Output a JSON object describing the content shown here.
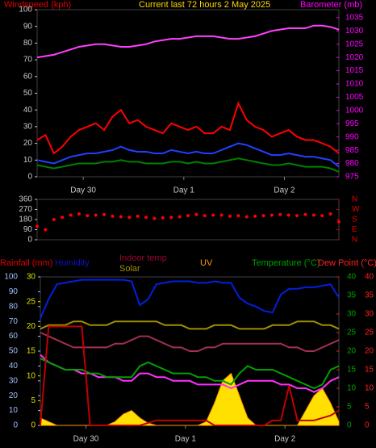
{
  "chart_data": [
    {
      "type": "line",
      "title": "Current last 72 hours 2 May 2025",
      "title_color": "#ffd800",
      "x": [
        0,
        2,
        4,
        6,
        8,
        10,
        12,
        14,
        16,
        18,
        20,
        22,
        24,
        26,
        28,
        30,
        32,
        34,
        36,
        38,
        40,
        42,
        44,
        46,
        48,
        50,
        52,
        54,
        56,
        58,
        60,
        62,
        64,
        66,
        68,
        70,
        72
      ],
      "xlim": [
        0,
        72
      ],
      "xticks": [
        {
          "value": 11,
          "label": "Day 30"
        },
        {
          "value": 35,
          "label": "Day 1"
        },
        {
          "value": 59,
          "label": "Day 2"
        }
      ],
      "axes": [
        {
          "label": "Windspeed (kph)",
          "color": "#e00000",
          "tick_color": "#c8c8c8",
          "lim": [
            0,
            100
          ],
          "ticks": [
            0,
            10,
            20,
            30,
            40,
            50,
            60,
            70,
            80,
            90,
            100
          ]
        },
        {
          "label": "Barometer (mb)",
          "color": "#ff00ff",
          "tick_color": "#ff00ff",
          "lim": [
            975,
            1038
          ],
          "ticks": [
            975,
            980,
            985,
            990,
            995,
            1000,
            1005,
            1010,
            1015,
            1020,
            1025,
            1030,
            1035
          ]
        }
      ],
      "series": [
        {
          "color": "#ff0000",
          "axis": 0,
          "values": [
            22,
            25,
            14,
            18,
            24,
            28,
            30,
            32,
            28,
            36,
            40,
            32,
            34,
            30,
            28,
            26,
            32,
            30,
            28,
            30,
            26,
            26,
            30,
            28,
            44,
            34,
            30,
            28,
            24,
            26,
            28,
            24,
            22,
            22,
            20,
            18,
            14
          ]
        },
        {
          "color": "#2040ff",
          "axis": 0,
          "values": [
            10,
            9,
            8,
            10,
            12,
            13,
            14,
            14,
            15,
            16,
            18,
            16,
            15,
            15,
            14,
            14,
            16,
            15,
            14,
            15,
            14,
            14,
            16,
            18,
            20,
            19,
            17,
            15,
            13,
            13,
            14,
            13,
            12,
            12,
            11,
            10,
            6
          ]
        },
        {
          "color": "#008000",
          "axis": 0,
          "values": [
            7,
            6,
            5,
            6,
            7,
            8,
            8,
            8,
            9,
            9,
            10,
            9,
            9,
            8,
            8,
            8,
            9,
            9,
            8,
            9,
            8,
            8,
            9,
            10,
            11,
            10,
            9,
            8,
            7,
            7,
            8,
            7,
            6,
            6,
            6,
            5,
            3
          ]
        },
        {
          "color": "#ff40ff",
          "axis": 1,
          "values": [
            1020,
            1020.5,
            1021,
            1022,
            1023,
            1024,
            1024.5,
            1025,
            1025,
            1024.5,
            1024,
            1024,
            1024.5,
            1025,
            1026,
            1026.5,
            1027,
            1027,
            1027.5,
            1028,
            1028,
            1028,
            1027.5,
            1027,
            1027,
            1027.5,
            1028,
            1029,
            1030,
            1030.5,
            1031,
            1031,
            1031,
            1032,
            1032,
            1031.5,
            1030.5
          ]
        }
      ]
    },
    {
      "type": "scatter",
      "x": [
        0,
        2,
        4,
        6,
        8,
        10,
        12,
        14,
        16,
        18,
        20,
        22,
        24,
        26,
        28,
        30,
        32,
        34,
        36,
        38,
        40,
        42,
        44,
        46,
        48,
        50,
        52,
        54,
        56,
        58,
        60,
        62,
        64,
        66,
        68,
        70,
        72
      ],
      "xlim": [
        0,
        72
      ],
      "axes": [
        {
          "color": "#c8c8c8",
          "tick_color": "#c8c8c8",
          "lim": [
            0,
            360
          ],
          "ticks": [
            0,
            90,
            180,
            270,
            360
          ]
        },
        {
          "color": "#e00000",
          "tick_color": "#e00000",
          "lim": [
            0,
            360
          ],
          "ticks": [
            {
              "value": 0,
              "label": "N"
            },
            {
              "value": 90,
              "label": "E"
            },
            {
              "value": 180,
              "label": "S"
            },
            {
              "value": 270,
              "label": "W"
            },
            {
              "value": 360,
              "label": "N"
            }
          ]
        }
      ],
      "series": [
        {
          "color": "#ff0000",
          "axis": 0,
          "values": [
            120,
            90,
            180,
            200,
            220,
            230,
            215,
            220,
            225,
            210,
            205,
            200,
            210,
            200,
            190,
            195,
            200,
            205,
            215,
            225,
            215,
            220,
            220,
            210,
            215,
            205,
            210,
            215,
            220,
            225,
            220,
            215,
            225,
            220,
            215,
            230,
            160
          ]
        }
      ]
    },
    {
      "type": "line",
      "x": [
        0,
        2,
        4,
        6,
        8,
        10,
        12,
        14,
        16,
        18,
        20,
        22,
        24,
        26,
        28,
        30,
        32,
        34,
        36,
        38,
        40,
        42,
        44,
        46,
        48,
        50,
        52,
        54,
        56,
        58,
        60,
        62,
        64,
        66,
        68,
        70,
        72
      ],
      "xlim": [
        0,
        72
      ],
      "xticks": [
        {
          "value": 11,
          "label": "Day 30"
        },
        {
          "value": 35,
          "label": "Day 1"
        },
        {
          "value": 59,
          "label": "Day 2"
        }
      ],
      "axes": [
        {
          "label": "Rainfall (mm)",
          "color": "#e00000",
          "tick_color": "#e0e000",
          "lim": [
            0,
            30
          ],
          "ticks": [
            0,
            5,
            10,
            15,
            20,
            25,
            30
          ]
        },
        {
          "label": "Humidity",
          "color": "#1010c0",
          "tick_color": "#a0c0ff",
          "lim": [
            0,
            100
          ],
          "ticks": [
            0,
            10,
            20,
            30,
            40,
            50,
            60,
            70,
            80,
            90,
            100
          ]
        },
        {
          "label": "Indoor temp",
          "color": "#a00030"
        },
        {
          "label": "Solar",
          "color": "#a09000"
        },
        {
          "label": "UV",
          "color": "#ff9900",
          "lim": [
            0,
            20
          ]
        },
        {
          "label": "Temperature (°C)",
          "color": "#00a000",
          "tick_color": "#00a000",
          "lim": [
            0,
            40
          ],
          "ticks": [
            0,
            5,
            10,
            15,
            20,
            25,
            30,
            35,
            40
          ]
        },
        {
          "label": "Dew Point (°C)",
          "color": "#ff2020",
          "tick_color": "#ff2020",
          "lim": [
            0,
            40
          ],
          "ticks": [
            0,
            5,
            10,
            15,
            20,
            25,
            30,
            35,
            40
          ]
        }
      ],
      "series": [
        {
          "color": "#ffe000",
          "axis": 4,
          "area": true,
          "values": [
            1,
            0.5,
            0,
            0,
            0,
            0,
            0,
            0,
            0,
            0.5,
            1.5,
            2,
            1,
            0.3,
            0,
            0,
            0,
            0,
            0,
            0,
            0.5,
            3,
            6,
            7,
            4,
            1,
            0,
            0,
            0,
            0,
            0,
            0,
            2,
            4,
            5,
            3,
            0.5
          ]
        },
        {
          "color": "#a09000",
          "axis": 5,
          "values": [
            26,
            27,
            27,
            27,
            28,
            28,
            27,
            27,
            27,
            28,
            28,
            28,
            28,
            28,
            28,
            27,
            27,
            27,
            26,
            26,
            26,
            27,
            27,
            27,
            26,
            26,
            26,
            26,
            27,
            27,
            27,
            28,
            28,
            28,
            27,
            27,
            26
          ]
        },
        {
          "color": "#a03050",
          "axis": 5,
          "values": [
            25,
            24,
            23,
            22,
            21,
            21,
            21,
            21,
            21,
            22,
            22,
            23,
            24,
            24,
            23,
            22,
            21,
            21,
            20,
            20,
            21,
            21,
            22,
            22,
            22,
            22,
            22,
            22,
            22,
            22,
            21,
            21,
            20,
            20,
            21,
            22,
            23
          ]
        },
        {
          "color": "#ff30ff",
          "axis": 6,
          "values": [
            19,
            17,
            16,
            15,
            15,
            14,
            14,
            13,
            13,
            13,
            12,
            12,
            14,
            14,
            13,
            13,
            12,
            12,
            12,
            11,
            11,
            11,
            11,
            10,
            11,
            12,
            12,
            12,
            12,
            11,
            11,
            10,
            10,
            9,
            10,
            12,
            13
          ]
        },
        {
          "color": "#00a000",
          "axis": 5,
          "values": [
            18,
            17,
            16,
            15,
            15,
            15,
            14,
            14,
            13,
            13,
            13,
            13,
            16,
            17,
            16,
            15,
            14,
            14,
            14,
            13,
            13,
            12,
            12,
            11,
            14,
            16,
            15,
            15,
            15,
            14,
            13,
            12,
            11,
            10,
            11,
            15,
            16
          ]
        },
        {
          "color": "#c00000",
          "axis": 0,
          "values": [
            0,
            20,
            20,
            20,
            20,
            20,
            0,
            0,
            0,
            0,
            0,
            0,
            0,
            0.5,
            1,
            1,
            1,
            1,
            1,
            1,
            1,
            0,
            0,
            0,
            0,
            0,
            0,
            0,
            1,
            1,
            8,
            1,
            1,
            1,
            1.5,
            2,
            3
          ]
        },
        {
          "color": "#0020e0",
          "axis": 1,
          "values": [
            72,
            85,
            95,
            96,
            97,
            98,
            98,
            98,
            98,
            98,
            98,
            97,
            81,
            85,
            95,
            96,
            97,
            97,
            97,
            96,
            96,
            97,
            96,
            96,
            86,
            82,
            80,
            77,
            76,
            88,
            92,
            92,
            93,
            93,
            94,
            95,
            86
          ]
        }
      ]
    }
  ]
}
